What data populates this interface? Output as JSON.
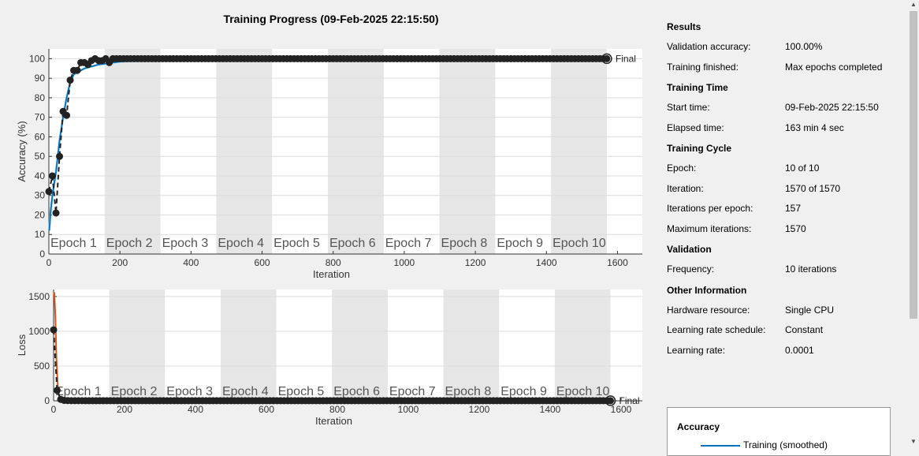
{
  "title": "Training Progress (09-Feb-2025 22:15:50)",
  "epoch_labels": [
    "Epoch 1",
    "Epoch 2",
    "Epoch 3",
    "Epoch 4",
    "Epoch 5",
    "Epoch 6",
    "Epoch 7",
    "Epoch 8",
    "Epoch 9",
    "Epoch 10"
  ],
  "final_label": "Final",
  "colors": {
    "accuracy_training": "#0072bd",
    "accuracy_training_light": "#9fd0f3",
    "loss_training": "#d95319",
    "validation": "#222222",
    "epoch_band": "#e6e6e6"
  },
  "info": {
    "sections": [
      {
        "title": "Results",
        "rows": [
          {
            "label": "Validation accuracy:",
            "value": "100.00%"
          },
          {
            "label": "Training finished:",
            "value": "Max epochs completed"
          }
        ]
      },
      {
        "title": "Training Time",
        "rows": [
          {
            "label": "Start time:",
            "value": "09-Feb-2025 22:15:50"
          },
          {
            "label": "Elapsed time:",
            "value": "163 min 4 sec"
          }
        ]
      },
      {
        "title": "Training Cycle",
        "rows": [
          {
            "label": "Epoch:",
            "value": "10 of 10"
          },
          {
            "label": "Iteration:",
            "value": "1570 of 1570"
          },
          {
            "label": "Iterations per epoch:",
            "value": "157"
          },
          {
            "label": "Maximum iterations:",
            "value": "1570"
          }
        ]
      },
      {
        "title": "Validation",
        "rows": [
          {
            "label": "Frequency:",
            "value": "10 iterations"
          }
        ]
      },
      {
        "title": "Other Information",
        "rows": [
          {
            "label": "Hardware resource:",
            "value": "Single CPU"
          },
          {
            "label": "Learning rate schedule:",
            "value": "Constant"
          },
          {
            "label": "Learning rate:",
            "value": "0.0001"
          }
        ]
      }
    ]
  },
  "legend": {
    "title": "Accuracy",
    "entry": "Training (smoothed)"
  },
  "chart_data": [
    {
      "type": "line",
      "ylabel": "Accuracy (%)",
      "xlabel": "Iteration",
      "xlim": [
        0,
        1670
      ],
      "ylim": [
        0,
        105
      ],
      "xticks": [
        0,
        200,
        400,
        600,
        800,
        1000,
        1200,
        1400,
        1600
      ],
      "yticks": [
        0,
        10,
        20,
        30,
        40,
        50,
        60,
        70,
        80,
        90,
        100
      ],
      "epoch_iterations": 157,
      "grid": true,
      "series": [
        {
          "role": "training_smoothed",
          "x": [
            1,
            5,
            10,
            15,
            20,
            25,
            30,
            35,
            40,
            50,
            60,
            70,
            80,
            90,
            100,
            120,
            140,
            160,
            180,
            200,
            250,
            300,
            400,
            500,
            600,
            800,
            1000,
            1200,
            1400,
            1570
          ],
          "y": [
            12,
            22,
            30,
            36,
            42,
            50,
            58,
            64,
            70,
            80,
            88,
            92,
            93,
            94,
            95,
            96,
            97,
            97.5,
            98,
            98.5,
            99,
            99.2,
            99.5,
            99.6,
            99.7,
            99.8,
            99.8,
            99.9,
            99.9,
            99.9
          ]
        },
        {
          "role": "validation",
          "x": [
            0,
            10,
            20,
            30,
            40,
            50,
            60,
            70,
            80,
            90,
            100,
            110,
            120,
            130,
            140,
            150,
            160,
            170,
            180,
            190,
            200,
            250,
            300,
            350,
            400,
            450,
            500,
            600,
            800,
            1000,
            1200,
            1400,
            1570
          ],
          "y": [
            32,
            40,
            21,
            50,
            73,
            71,
            89,
            94,
            94,
            98,
            98,
            97,
            99,
            100,
            99,
            99,
            100,
            98,
            100,
            100,
            100,
            100,
            100,
            100,
            100,
            100,
            100,
            100,
            100,
            100,
            100,
            100,
            100
          ]
        }
      ]
    },
    {
      "type": "line",
      "ylabel": "Loss",
      "xlabel": "Iteration",
      "xlim": [
        0,
        1660
      ],
      "ylim": [
        0,
        1600
      ],
      "xticks": [
        0,
        200,
        400,
        600,
        800,
        1000,
        1200,
        1400,
        1600
      ],
      "yticks": [
        0,
        500,
        1000,
        1500
      ],
      "epoch_iterations": 157,
      "grid": true,
      "series": [
        {
          "role": "training",
          "x": [
            0,
            2,
            5,
            8,
            12,
            16,
            20,
            30,
            40,
            60,
            100,
            200,
            400,
            800,
            1200,
            1570
          ],
          "y": [
            1500,
            1560,
            1200,
            600,
            200,
            60,
            20,
            10,
            8,
            5,
            3,
            2,
            1,
            1,
            1,
            1
          ]
        },
        {
          "role": "validation",
          "x": [
            0,
            10,
            20,
            30,
            40,
            50,
            100,
            200,
            400,
            800,
            1200,
            1570
          ],
          "y": [
            1020,
            150,
            20,
            5,
            3,
            2,
            1,
            1,
            1,
            1,
            1,
            1
          ]
        }
      ]
    }
  ]
}
